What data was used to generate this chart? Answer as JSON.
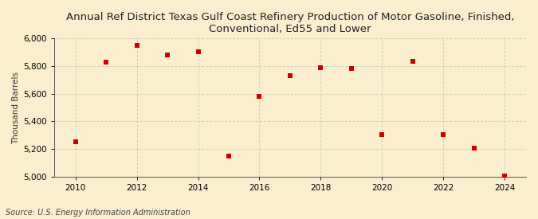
{
  "title": "Annual Ref District Texas Gulf Coast Refinery Production of Motor Gasoline, Finished,\nConventional, Ed55 and Lower",
  "ylabel": "Thousand Barrels",
  "source": "Source: U.S. Energy Information Administration",
  "years": [
    2010,
    2011,
    2012,
    2013,
    2014,
    2015,
    2016,
    2017,
    2018,
    2019,
    2020,
    2021,
    2022,
    2023,
    2024
  ],
  "values": [
    5255,
    5830,
    5950,
    5880,
    5905,
    5150,
    5580,
    5730,
    5790,
    5780,
    5305,
    5835,
    5305,
    5205,
    5005
  ],
  "ylim": [
    5000,
    6000
  ],
  "yticks": [
    5000,
    5200,
    5400,
    5600,
    5800,
    6000
  ],
  "xticks": [
    2010,
    2012,
    2014,
    2016,
    2018,
    2020,
    2022,
    2024
  ],
  "marker_color": "#cc0000",
  "marker": "s",
  "marker_size": 5,
  "bg_color": "#faeece",
  "grid_color": "#aaaaaa",
  "title_fontsize": 9.5,
  "label_fontsize": 7.5,
  "tick_fontsize": 7.5,
  "source_fontsize": 7
}
